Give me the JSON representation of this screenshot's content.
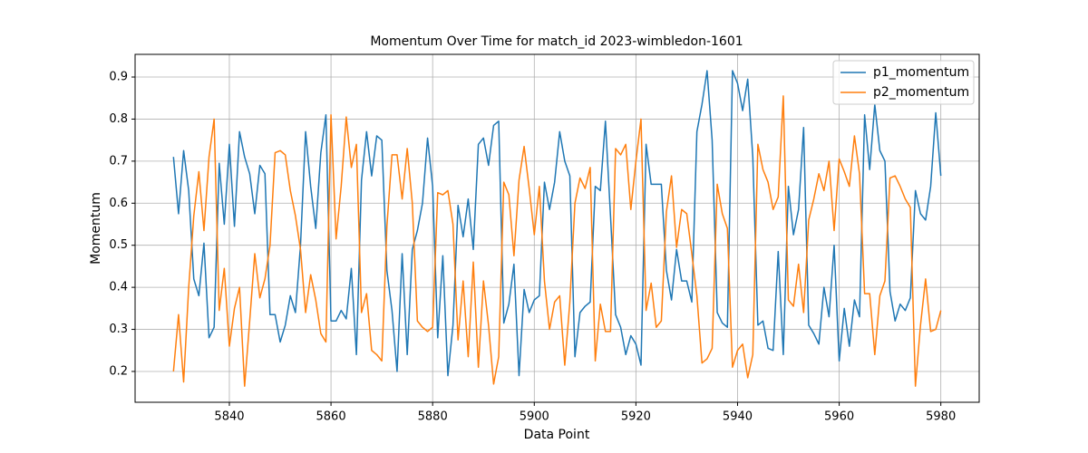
{
  "chart_data": {
    "type": "line",
    "title": "Momentum Over Time for match_id 2023-wimbledon-1601",
    "x_label": "Data Point",
    "y_label": "Momentum",
    "x": [
      5829,
      5830,
      5831,
      5832,
      5833,
      5834,
      5835,
      5836,
      5837,
      5838,
      5839,
      5840,
      5841,
      5842,
      5843,
      5844,
      5845,
      5846,
      5847,
      5848,
      5849,
      5850,
      5851,
      5852,
      5853,
      5854,
      5855,
      5856,
      5857,
      5858,
      5859,
      5860,
      5861,
      5862,
      5863,
      5864,
      5865,
      5866,
      5867,
      5868,
      5869,
      5870,
      5871,
      5872,
      5873,
      5874,
      5875,
      5876,
      5877,
      5878,
      5879,
      5880,
      5881,
      5882,
      5883,
      5884,
      5885,
      5886,
      5887,
      5888,
      5889,
      5890,
      5891,
      5892,
      5893,
      5894,
      5895,
      5896,
      5897,
      5898,
      5899,
      5900,
      5901,
      5902,
      5903,
      5904,
      5905,
      5906,
      5907,
      5908,
      5909,
      5910,
      5911,
      5912,
      5913,
      5914,
      5915,
      5916,
      5917,
      5918,
      5919,
      5920,
      5921,
      5922,
      5923,
      5924,
      5925,
      5926,
      5927,
      5928,
      5929,
      5930,
      5931,
      5932,
      5933,
      5934,
      5935,
      5936,
      5937,
      5938,
      5939,
      5940,
      5941,
      5942,
      5943,
      5944,
      5945,
      5946,
      5947,
      5948,
      5949,
      5950,
      5951,
      5952,
      5953,
      5954,
      5955,
      5956,
      5957,
      5958,
      5959,
      5960,
      5961,
      5962,
      5963,
      5964,
      5965,
      5966,
      5967,
      5968,
      5969,
      5970,
      5971,
      5972,
      5973,
      5974,
      5975,
      5976,
      5977,
      5978,
      5979,
      5980
    ],
    "series": [
      {
        "name": "p1_momentum",
        "color": "#1f77b4",
        "values": [
          0.71,
          0.575,
          0.725,
          0.63,
          0.42,
          0.38,
          0.505,
          0.28,
          0.305,
          0.695,
          0.55,
          0.74,
          0.545,
          0.77,
          0.71,
          0.67,
          0.575,
          0.69,
          0.67,
          0.335,
          0.335,
          0.27,
          0.31,
          0.38,
          0.34,
          0.5,
          0.77,
          0.64,
          0.54,
          0.72,
          0.81,
          0.32,
          0.32,
          0.345,
          0.325,
          0.445,
          0.24,
          0.655,
          0.77,
          0.665,
          0.76,
          0.75,
          0.44,
          0.345,
          0.2,
          0.48,
          0.24,
          0.49,
          0.535,
          0.6,
          0.755,
          0.64,
          0.28,
          0.475,
          0.19,
          0.31,
          0.595,
          0.52,
          0.61,
          0.49,
          0.74,
          0.755,
          0.69,
          0.785,
          0.795,
          0.315,
          0.36,
          0.455,
          0.19,
          0.395,
          0.34,
          0.37,
          0.38,
          0.65,
          0.585,
          0.65,
          0.77,
          0.7,
          0.665,
          0.235,
          0.34,
          0.355,
          0.365,
          0.64,
          0.63,
          0.795,
          0.57,
          0.335,
          0.305,
          0.24,
          0.285,
          0.265,
          0.215,
          0.74,
          0.645,
          0.645,
          0.645,
          0.44,
          0.37,
          0.49,
          0.415,
          0.415,
          0.365,
          0.77,
          0.835,
          0.915,
          0.75,
          0.34,
          0.315,
          0.305,
          0.915,
          0.885,
          0.82,
          0.895,
          0.71,
          0.31,
          0.32,
          0.255,
          0.25,
          0.485,
          0.24,
          0.64,
          0.525,
          0.585,
          0.78,
          0.31,
          0.29,
          0.265,
          0.4,
          0.33,
          0.5,
          0.225,
          0.35,
          0.26,
          0.37,
          0.33,
          0.81,
          0.68,
          0.835,
          0.725,
          0.7,
          0.39,
          0.32,
          0.36,
          0.345,
          0.375,
          0.63,
          0.575,
          0.56,
          0.64,
          0.815,
          0.665
        ]
      },
      {
        "name": "p2_momentum",
        "color": "#ff7f0e",
        "values": [
          0.2,
          0.335,
          0.175,
          0.4,
          0.57,
          0.675,
          0.535,
          0.71,
          0.8,
          0.345,
          0.445,
          0.26,
          0.35,
          0.4,
          0.165,
          0.32,
          0.48,
          0.375,
          0.42,
          0.5,
          0.72,
          0.725,
          0.715,
          0.63,
          0.57,
          0.49,
          0.34,
          0.43,
          0.37,
          0.29,
          0.27,
          0.81,
          0.515,
          0.64,
          0.805,
          0.685,
          0.74,
          0.34,
          0.385,
          0.25,
          0.24,
          0.225,
          0.545,
          0.715,
          0.715,
          0.61,
          0.73,
          0.6,
          0.32,
          0.305,
          0.295,
          0.305,
          0.625,
          0.62,
          0.63,
          0.55,
          0.275,
          0.415,
          0.235,
          0.46,
          0.21,
          0.415,
          0.31,
          0.17,
          0.235,
          0.65,
          0.62,
          0.475,
          0.655,
          0.735,
          0.635,
          0.525,
          0.64,
          0.415,
          0.3,
          0.365,
          0.38,
          0.215,
          0.365,
          0.6,
          0.66,
          0.635,
          0.685,
          0.225,
          0.36,
          0.295,
          0.295,
          0.73,
          0.715,
          0.74,
          0.585,
          0.7,
          0.8,
          0.345,
          0.41,
          0.305,
          0.32,
          0.58,
          0.665,
          0.495,
          0.585,
          0.575,
          0.48,
          0.38,
          0.22,
          0.23,
          0.255,
          0.645,
          0.575,
          0.54,
          0.21,
          0.25,
          0.265,
          0.185,
          0.24,
          0.74,
          0.68,
          0.65,
          0.585,
          0.615,
          0.855,
          0.37,
          0.355,
          0.455,
          0.34,
          0.56,
          0.61,
          0.67,
          0.63,
          0.7,
          0.535,
          0.705,
          0.675,
          0.64,
          0.76,
          0.67,
          0.385,
          0.385,
          0.24,
          0.38,
          0.415,
          0.66,
          0.665,
          0.64,
          0.61,
          0.59,
          0.165,
          0.31,
          0.42,
          0.295,
          0.3,
          0.345
        ]
      }
    ],
    "xlim": [
      5821.45,
      5987.55
    ],
    "xticks": [
      5840,
      5860,
      5880,
      5900,
      5920,
      5940,
      5960,
      5980
    ],
    "ylim": [
      0.1267,
      0.9539
    ],
    "yticks": [
      0.2,
      0.3,
      0.4,
      0.5,
      0.6,
      0.7,
      0.8,
      0.9
    ],
    "grid": true,
    "legend": "upper right"
  }
}
